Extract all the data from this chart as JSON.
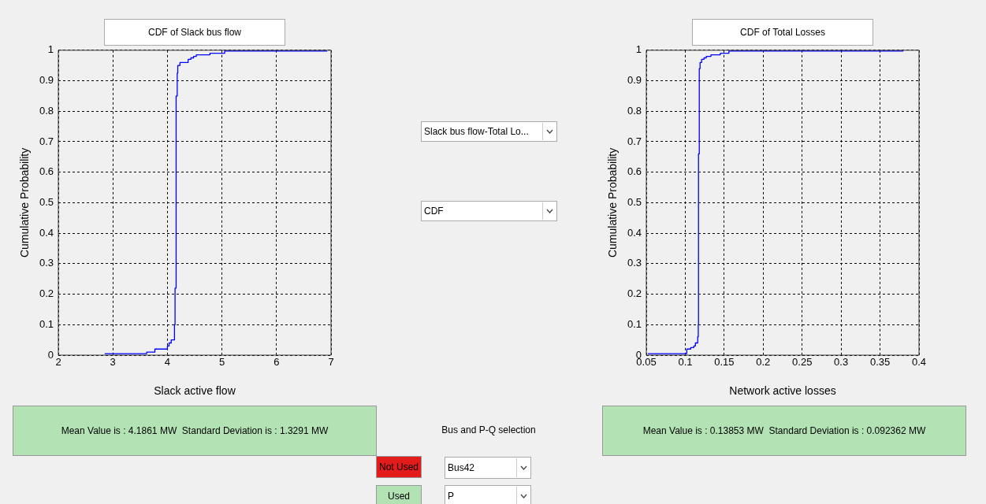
{
  "chart_data": [
    {
      "type": "step",
      "title": "CDF of Slack bus flow",
      "xlabel": "Slack active flow",
      "ylabel": "Cumulative Probability",
      "color": "#0000ff",
      "x": [
        2.85,
        3.62,
        3.77,
        4.0,
        4.03,
        4.07,
        4.13,
        4.14,
        4.16,
        4.18,
        4.19,
        4.23,
        4.38,
        4.43,
        4.48,
        4.53,
        4.78,
        5.05,
        6.93
      ],
      "values": [
        0.005,
        0.01,
        0.02,
        0.03,
        0.04,
        0.05,
        0.1,
        0.22,
        0.85,
        0.925,
        0.95,
        0.96,
        0.97,
        0.975,
        0.98,
        0.985,
        0.99,
        0.997,
        0.997
      ],
      "xlim": [
        2,
        7
      ],
      "xticks": [
        2,
        3,
        4,
        5,
        6,
        7
      ],
      "ylim": [
        0,
        1
      ],
      "yticks": [
        0,
        0.1,
        0.2,
        0.3,
        0.4,
        0.5,
        0.6,
        0.7,
        0.8,
        0.9,
        1
      ],
      "grid": true,
      "annotations": [
        "Mean Value is : 4.1861 MW  Standard Deviation is : 1.3291 MW"
      ]
    },
    {
      "type": "step",
      "title": "CDF of Total Losses",
      "xlabel": "Network active losses",
      "ylabel": "Cumulative Probability",
      "color": "#0000ff",
      "x": [
        0.052,
        0.102,
        0.107,
        0.111,
        0.113,
        0.116,
        0.1167,
        0.117,
        0.118,
        0.119,
        0.121,
        0.124,
        0.127,
        0.133,
        0.145,
        0.156,
        0.38
      ],
      "values": [
        0.005,
        0.02,
        0.025,
        0.03,
        0.04,
        0.06,
        0.1,
        0.66,
        0.94,
        0.96,
        0.97,
        0.975,
        0.98,
        0.985,
        0.99,
        0.997,
        0.997
      ],
      "xlim": [
        0.05,
        0.4
      ],
      "xticks": [
        0.05,
        0.1,
        0.15,
        0.2,
        0.25,
        0.3,
        0.35,
        0.4
      ],
      "ylim": [
        0,
        1
      ],
      "yticks": [
        0,
        0.1,
        0.2,
        0.3,
        0.4,
        0.5,
        0.6,
        0.7,
        0.8,
        0.9,
        1
      ],
      "grid": true,
      "annotations": [
        "Mean Value is : 0.13853 MW  Standard Deviation is : 0.092362 MW"
      ]
    },
    {
      "type": "other",
      "annotations": [
        "Slack bus flow-Total Lo...",
        "CDF",
        "Bus and P-Q selection",
        "Not Used",
        "Used",
        "Bus42",
        "P"
      ]
    }
  ]
}
